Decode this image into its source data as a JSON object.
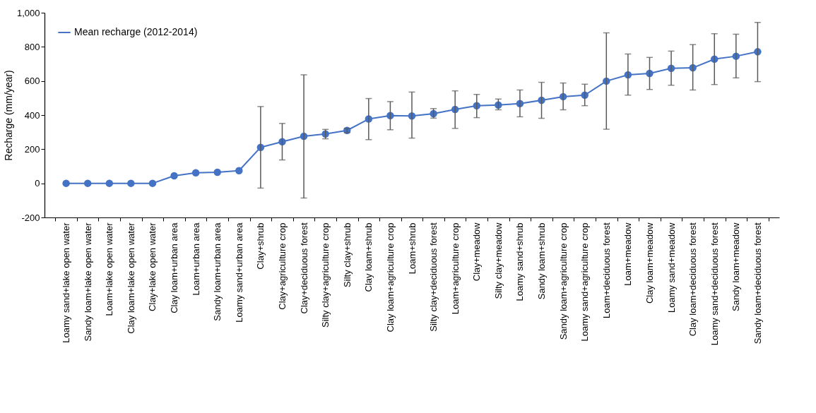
{
  "chart_data": {
    "type": "line",
    "ylabel": "Recharge (mm/year)",
    "categories": [
      "Loamy sand+lake open water",
      "Sandy loam+lake open water",
      "Loam+lake open water",
      "Clay loam+lake open water",
      "Clay+lake open water",
      "Clay loam+urban area",
      "Loam+urban area",
      "Sandy loam+urban area",
      "Loamy sand+urban area",
      "Clay+shrub",
      "Clay+agriculture crop",
      "Clay+deciduous forest",
      "Silty clay+agriculture crop",
      "Silty clay+shrub",
      "Clay loam+shrub",
      "Clay loam+agriculture crop",
      "Loam+shrub",
      "Silty clay+deciduous forest",
      "Loam+agriculture crop",
      "Clay+meadow",
      "Silty clay+meadow",
      "Loamy sand+shrub",
      "Sandy loam+shrub",
      "Sandy loam+agriculture crop",
      "Loamy sand+agriculture crop",
      "Loam+deciduous forest",
      "Loam+meadow",
      "Clay loam+meadow",
      "Loamy sand+meadow",
      "Clay loam+deciduous forest",
      "Loamy sand+deciduous forest",
      "Sandy loam+meadow",
      "Sandy loam+deciduous forest"
    ],
    "series": [
      {
        "name": "Mean recharge (2012-2014)",
        "color": "#4472c4",
        "values": [
          0,
          0,
          0,
          0,
          0,
          44,
          62,
          65,
          74,
          211,
          244,
          276,
          289,
          310,
          377,
          397,
          395,
          408,
          433,
          455,
          459,
          467,
          487,
          508,
          517,
          599,
          636,
          644,
          674,
          677,
          728,
          745,
          771
        ],
        "errors": [
          null,
          null,
          null,
          null,
          null,
          null,
          null,
          null,
          null,
          [
            -28,
            450
          ],
          [
            137,
            351
          ],
          [
            -86,
            636
          ],
          [
            261,
            316
          ],
          [
            297,
            322
          ],
          [
            256,
            497
          ],
          [
            314,
            479
          ],
          [
            265,
            535
          ],
          [
            382,
            438
          ],
          [
            322,
            542
          ],
          [
            385,
            521
          ],
          [
            431,
            494
          ],
          [
            390,
            547
          ],
          [
            381,
            592
          ],
          [
            431,
            588
          ],
          [
            455,
            581
          ],
          [
            317,
            882
          ],
          [
            517,
            758
          ],
          [
            550,
            738
          ],
          [
            575,
            775
          ],
          [
            547,
            813
          ],
          [
            579,
            877
          ],
          [
            618,
            874
          ],
          [
            596,
            943
          ]
        ]
      }
    ],
    "ylim": [
      -200,
      1000
    ],
    "yticks": [
      -200,
      0,
      200,
      400,
      600,
      800,
      {
        "value": 1000,
        "label": "1,000"
      }
    ],
    "legend": "top left",
    "marker": "circle",
    "line_style": "solid",
    "grid": false
  }
}
